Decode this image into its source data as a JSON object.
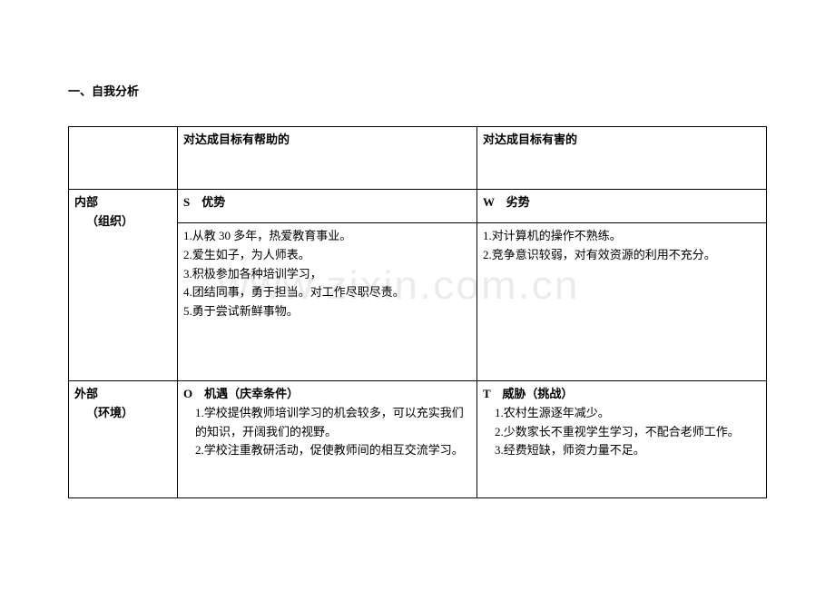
{
  "heading": "一、自我分析",
  "header": {
    "col2": "对达成目标有帮助的",
    "col3": "对达成目标有害的"
  },
  "row_internal": {
    "label_line1": "内部",
    "label_line2": "（组织）",
    "s_label": "S　优势",
    "w_label": "W　劣势",
    "s_items": {
      "i1": "1.从教 30 多年，热爱教育事业。",
      "i2": "2.爱生如子，为人师表。",
      "i3": "3.积极参加各种培训学习，",
      "i4": "4.团结同事，勇于担当。对工作尽职尽责。",
      "i5": "5.勇于尝试新鲜事物。"
    },
    "w_items": {
      "i1": "1.对计算机的操作不熟练。",
      "i2": "2.竞争意识较弱，对有效资源的利用不充分。"
    }
  },
  "row_external": {
    "label_line1": "外部",
    "label_line2": "（环境）",
    "o_label": "O　机遇（庆幸条件）",
    "o_items": {
      "i1": "1.学校提供教师培训学习的机会较多，可以充实我们的知识，开阔我们的视野。",
      "i2": "2.学校注重教研活动，促使教师间的相互交流学习。"
    },
    "t_label": "T　威胁（挑战）",
    "t_items": {
      "i1": "1.农村生源逐年减少。",
      "i2": "2.少数家长不重视学生学习，不配合老师工作。",
      "i3": "3.经费短缺，师资力量不足。"
    }
  },
  "watermark": "www.zixin.com.cn"
}
